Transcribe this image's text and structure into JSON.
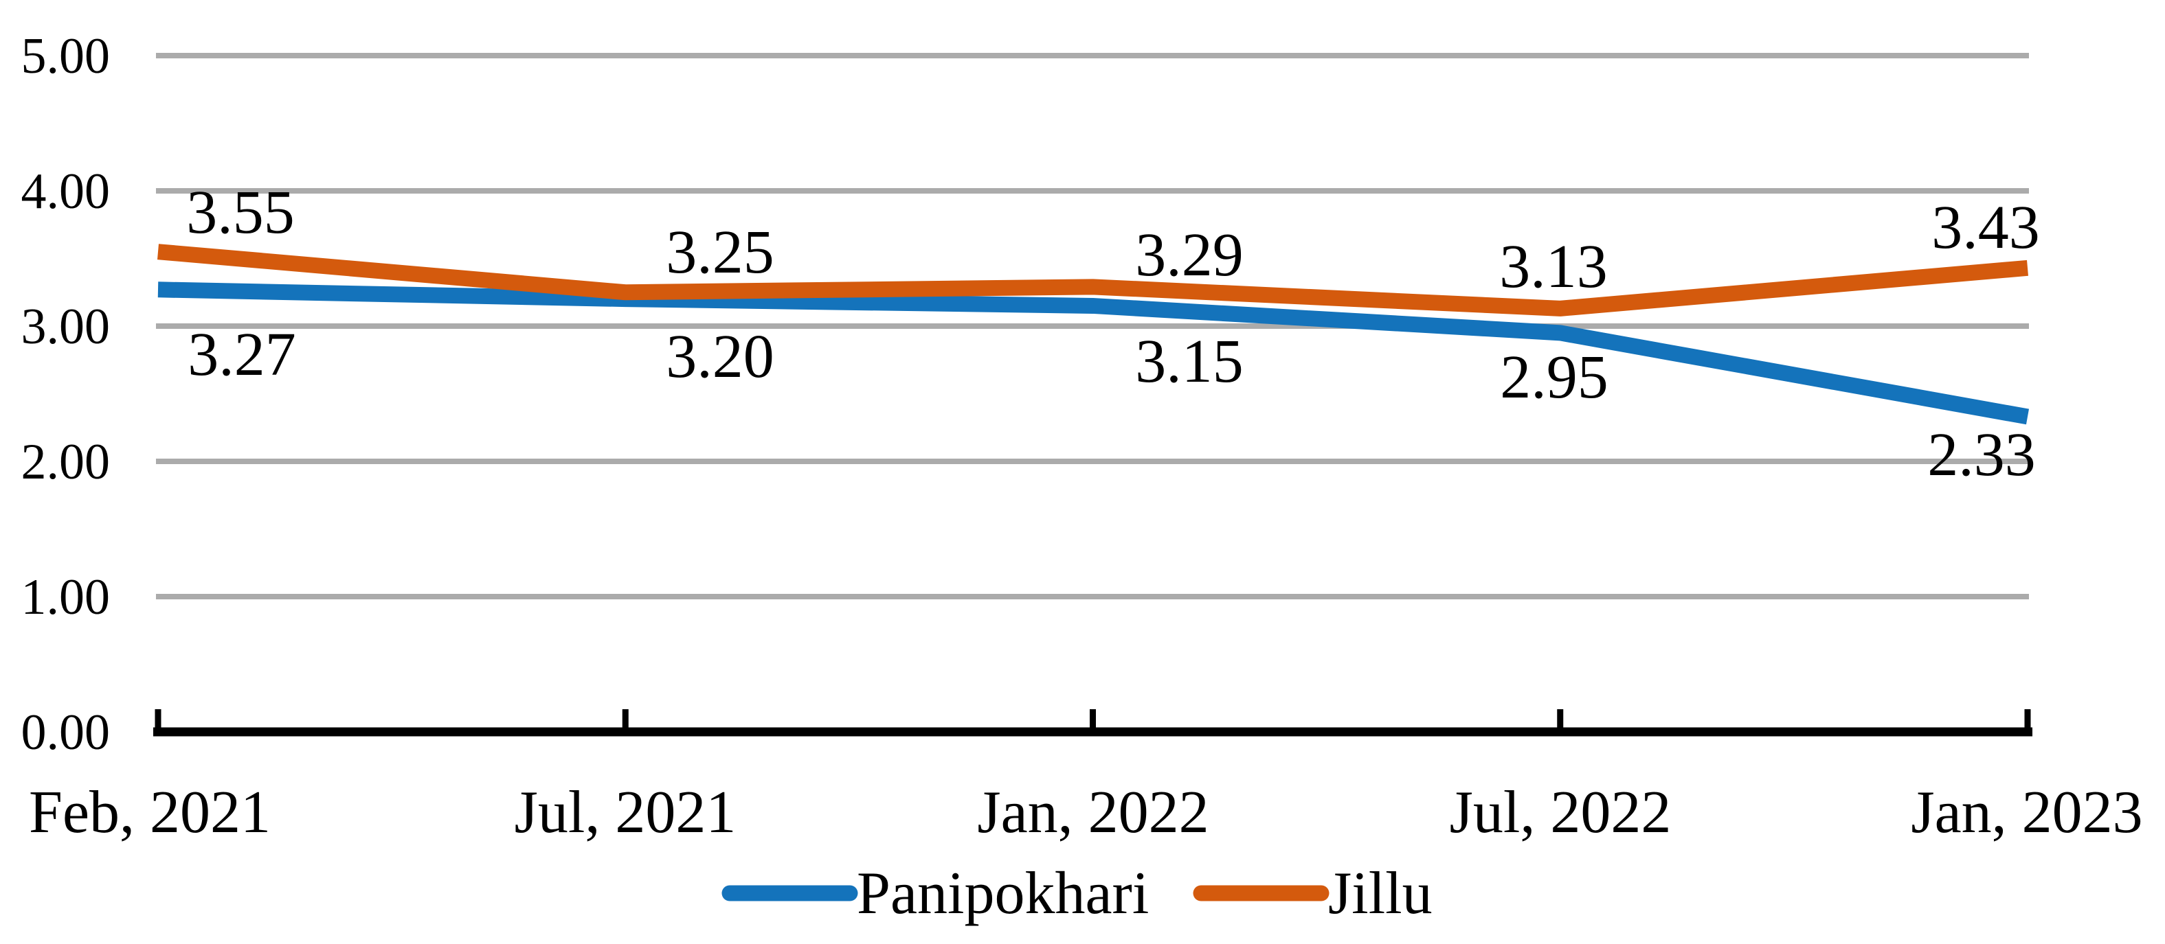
{
  "chart_data": {
    "type": "line",
    "categories": [
      "Feb, 2021",
      "Jul, 2021",
      "Jan, 2022",
      "Jul, 2022",
      "Jan, 2023"
    ],
    "series": [
      {
        "name": "Panipokhari",
        "color": "#1473BB",
        "values": [
          3.27,
          3.2,
          3.15,
          2.95,
          2.33
        ],
        "labels": [
          "3.27",
          "3.20",
          "3.15",
          "2.95",
          "2.33"
        ],
        "label_position": "below"
      },
      {
        "name": "Jillu",
        "color": "#D45A0D",
        "values": [
          3.55,
          3.25,
          3.29,
          3.13,
          3.43
        ],
        "labels": [
          "3.55",
          "3.25",
          "3.29",
          "3.13",
          "3.43"
        ],
        "label_position": "above"
      }
    ],
    "y_axis": {
      "min": 0,
      "max": 5,
      "tick_step": 1,
      "tick_labels": [
        "0.00",
        "1.00",
        "2.00",
        "3.00",
        "4.00",
        "5.00"
      ],
      "gridlines": [
        1,
        2,
        3,
        4,
        5
      ],
      "gridline_color": "#ABABAB",
      "axis_color": "#000000"
    },
    "x_axis": {
      "tick_labels": [
        "Feb, 2021",
        "Jul, 2021",
        "Jan, 2022",
        "Jul, 2022",
        "Jan, 2023"
      ]
    },
    "legend": {
      "position": "bottom-center",
      "entries": [
        {
          "label": "Panipokhari",
          "color": "#1473BB"
        },
        {
          "label": "Jillu",
          "color": "#D45A0D"
        }
      ]
    },
    "title": "",
    "xlabel": "",
    "ylabel": ""
  }
}
